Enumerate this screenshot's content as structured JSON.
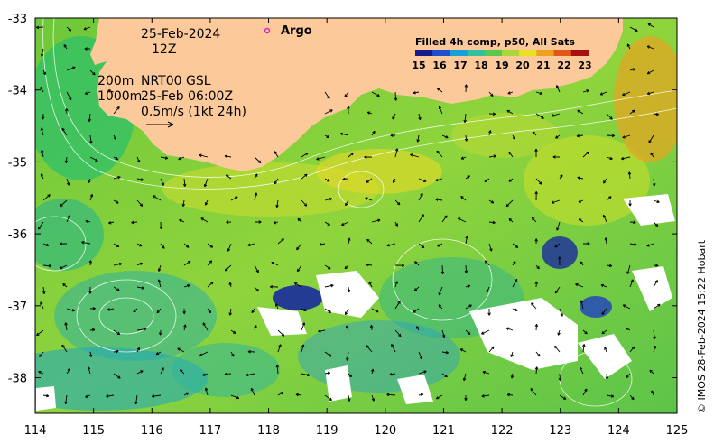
{
  "map": {
    "date_label": "25-Feb-2024",
    "time_label": "12Z",
    "contour_label_a": "200m",
    "contour_label_b": "1000m",
    "model_label": "NRT00 GSL",
    "model_time": "25-Feb 06:00Z",
    "scale_label": "0.5m/s (1kt 24h)",
    "argo_label": "Argo",
    "credit": "© IMOS 28-Feb-2024 15:22 Hobart",
    "lon_ticks": [
      "114",
      "115",
      "116",
      "117",
      "118",
      "119",
      "120",
      "121",
      "122",
      "123",
      "124",
      "125"
    ],
    "lat_ticks": [
      "-33",
      "-34",
      "-35",
      "-36",
      "-37",
      "-38"
    ],
    "legend": {
      "title": "Filled 4h comp, p50, All Sats",
      "ticks": [
        "15",
        "16",
        "17",
        "18",
        "19",
        "20",
        "21",
        "22",
        "23"
      ],
      "colors": [
        "#1a1a8c",
        "#1f4fd0",
        "#18a0d8",
        "#2fc0a0",
        "#58c850",
        "#a8d838",
        "#e8e020",
        "#f0a020",
        "#e05818",
        "#a81010"
      ]
    },
    "colors": {
      "land": "#fbc99a",
      "ocean_base": "#7fcf3a",
      "no_data": "#ffffff"
    }
  }
}
